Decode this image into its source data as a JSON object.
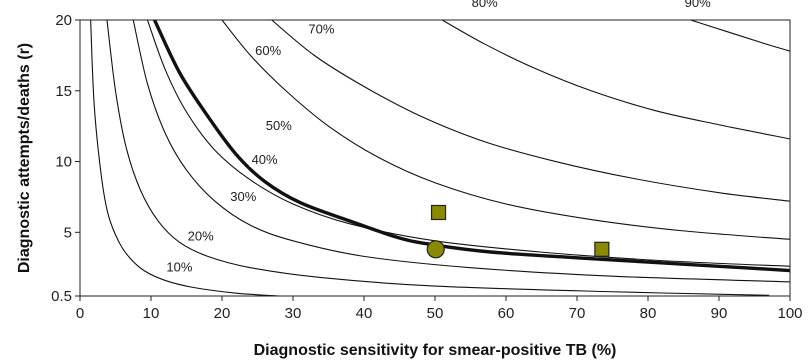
{
  "chart_data": {
    "type": "line",
    "title": "",
    "xlabel": "Diagnostic sensitivity for smear-positive TB (%)",
    "ylabel": "Diagnostic attempts/deaths (r)",
    "xlim": [
      0,
      100
    ],
    "ylim": [
      0.5,
      20
    ],
    "x_ticks": [
      "0",
      "10",
      "20",
      "30",
      "40",
      "50",
      "60",
      "70",
      "80",
      "90",
      "100"
    ],
    "y_ticks": [
      "0.5",
      "5",
      "10",
      "15",
      "20"
    ],
    "grid": false,
    "colors": {
      "contour": "#111111",
      "highlight": "#111111",
      "marker_fill": "#8a8a00",
      "marker_stroke": "#222222"
    },
    "series": [
      {
        "name": "10%",
        "label_at": [
          14,
          2.3
        ],
        "points": [
          [
            1.5,
            20
          ],
          [
            2,
            14
          ],
          [
            3,
            9
          ],
          [
            4,
            6.2
          ],
          [
            5.5,
            4.3
          ],
          [
            7,
            3.2
          ],
          [
            9,
            2.3
          ],
          [
            12,
            1.6
          ],
          [
            16,
            1.1
          ],
          [
            22,
            0.7
          ],
          [
            28,
            0.5
          ]
        ]
      },
      {
        "name": "20%",
        "label_at": [
          17,
          4.5
        ],
        "points": [
          [
            3.8,
            20
          ],
          [
            5,
            15
          ],
          [
            6.5,
            11
          ],
          [
            8.5,
            8
          ],
          [
            11,
            5.8
          ],
          [
            14,
            4.3
          ],
          [
            18,
            3.3
          ],
          [
            24,
            2.5
          ],
          [
            34,
            1.8
          ],
          [
            50,
            1.2
          ],
          [
            75,
            0.8
          ],
          [
            97,
            0.55
          ]
        ]
      },
      {
        "name": "30%",
        "label_at": [
          23,
          7.3
        ],
        "points": [
          [
            7.5,
            20
          ],
          [
            9.5,
            15.5
          ],
          [
            12,
            12
          ],
          [
            15,
            9.4
          ],
          [
            19,
            7.2
          ],
          [
            24,
            5.5
          ],
          [
            30,
            4.4
          ],
          [
            40,
            3.3
          ],
          [
            55,
            2.5
          ],
          [
            75,
            1.9
          ],
          [
            100,
            1.5
          ]
        ]
      },
      {
        "name": "40%",
        "label_at": [
          26,
          9.9
        ],
        "points": [
          [
            9.5,
            20
          ],
          [
            12,
            16.5
          ],
          [
            15,
            13.5
          ],
          [
            19,
            10.8
          ],
          [
            24,
            8.7
          ],
          [
            30,
            7
          ],
          [
            38,
            5.6
          ],
          [
            50,
            4.4
          ],
          [
            65,
            3.6
          ],
          [
            82,
            3
          ],
          [
            100,
            2.6
          ]
        ]
      },
      {
        "name": "50%",
        "label_at": [
          28,
          12.3
        ],
        "highlight": true,
        "points": [
          [
            10.5,
            20
          ],
          [
            14,
            16.3
          ],
          [
            18,
            13.2
          ],
          [
            22,
            10.5
          ],
          [
            26,
            8.6
          ],
          [
            31,
            7.1
          ],
          [
            38,
            5.8
          ],
          [
            45,
            4.6
          ],
          [
            50,
            4.1
          ],
          [
            58,
            3.6
          ],
          [
            70,
            3.2
          ],
          [
            80,
            2.9
          ],
          [
            90,
            2.6
          ],
          [
            100,
            2.3
          ]
        ]
      },
      {
        "name": "60%",
        "label_at": [
          26.5,
          17.6
        ],
        "points": [
          [
            20,
            20
          ],
          [
            24,
            17.5
          ],
          [
            29,
            15
          ],
          [
            35,
            12.5
          ],
          [
            42,
            10.3
          ],
          [
            50,
            8.5
          ],
          [
            60,
            7
          ],
          [
            72,
            5.9
          ],
          [
            85,
            5.1
          ],
          [
            100,
            4.5
          ]
        ]
      },
      {
        "name": "70%",
        "label_at": [
          34,
          19.1
        ],
        "points": [
          [
            27,
            20
          ],
          [
            33,
            17.5
          ],
          [
            40,
            15.3
          ],
          [
            48,
            13.2
          ],
          [
            57,
            11.4
          ],
          [
            67,
            10
          ],
          [
            78,
            8.8
          ],
          [
            90,
            7.8
          ],
          [
            100,
            7.2
          ]
        ]
      },
      {
        "name": "80%",
        "label_at": [
          57,
          21
        ],
        "points": [
          [
            51,
            20
          ],
          [
            57,
            18.3
          ],
          [
            64,
            16.6
          ],
          [
            72,
            15
          ],
          [
            81,
            13.6
          ],
          [
            90,
            12.6
          ],
          [
            100,
            11.6
          ]
        ]
      },
      {
        "name": "90%",
        "label_at": [
          87,
          21
        ],
        "points": [
          [
            86,
            20
          ],
          [
            91,
            19.2
          ],
          [
            96,
            18.4
          ],
          [
            100,
            17.8
          ]
        ]
      }
    ],
    "markers": [
      {
        "shape": "square",
        "x": 50.5,
        "y": 6.4
      },
      {
        "shape": "circle",
        "x": 50.1,
        "y": 3.8
      },
      {
        "shape": "square",
        "x": 73.5,
        "y": 3.8
      }
    ]
  }
}
